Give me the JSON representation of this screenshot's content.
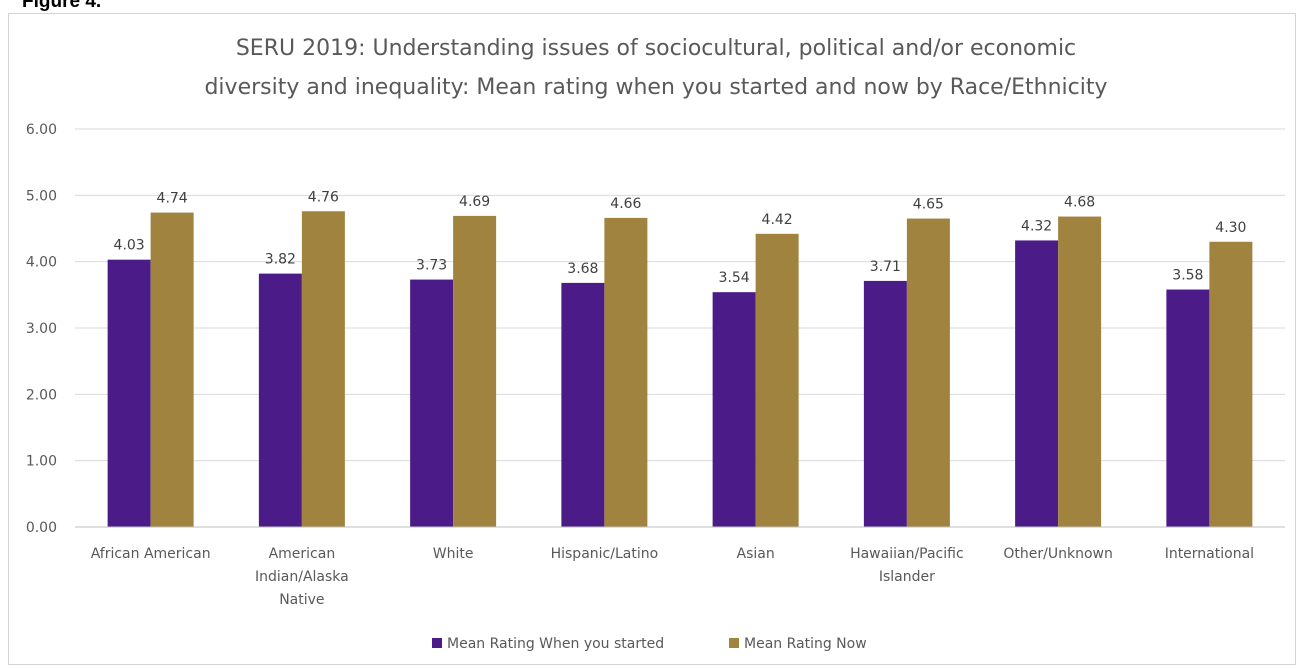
{
  "figure_label": "Figure 4.",
  "chart_data": {
    "type": "bar",
    "title_lines": [
      "SERU 2019: Understanding issues of sociocultural, political and/or economic",
      "diversity and inequality: Mean rating when you started and now by Race/Ethnicity"
    ],
    "categories": [
      [
        "African American"
      ],
      [
        "American",
        "Indian/Alaska",
        "Native"
      ],
      [
        "White"
      ],
      [
        "Hispanic/Latino"
      ],
      [
        "Asian"
      ],
      [
        "Hawaiian/Pacific",
        "Islander"
      ],
      [
        "Other/Unknown"
      ],
      [
        "International"
      ]
    ],
    "series": [
      {
        "name": "Mean Rating When you started",
        "color": "#4b1c87",
        "values": [
          4.03,
          3.82,
          3.73,
          3.68,
          3.54,
          3.71,
          4.32,
          3.58
        ]
      },
      {
        "name": "Mean Rating Now",
        "color": "#a0833f",
        "values": [
          4.74,
          4.76,
          4.69,
          4.66,
          4.42,
          4.65,
          4.68,
          4.3
        ]
      }
    ],
    "ylim": [
      0,
      6
    ],
    "yticks": [
      "0.00",
      "1.00",
      "2.00",
      "3.00",
      "4.00",
      "5.00",
      "6.00"
    ],
    "grid": true,
    "legend_position": "bottom",
    "xlabel": "",
    "ylabel": ""
  }
}
